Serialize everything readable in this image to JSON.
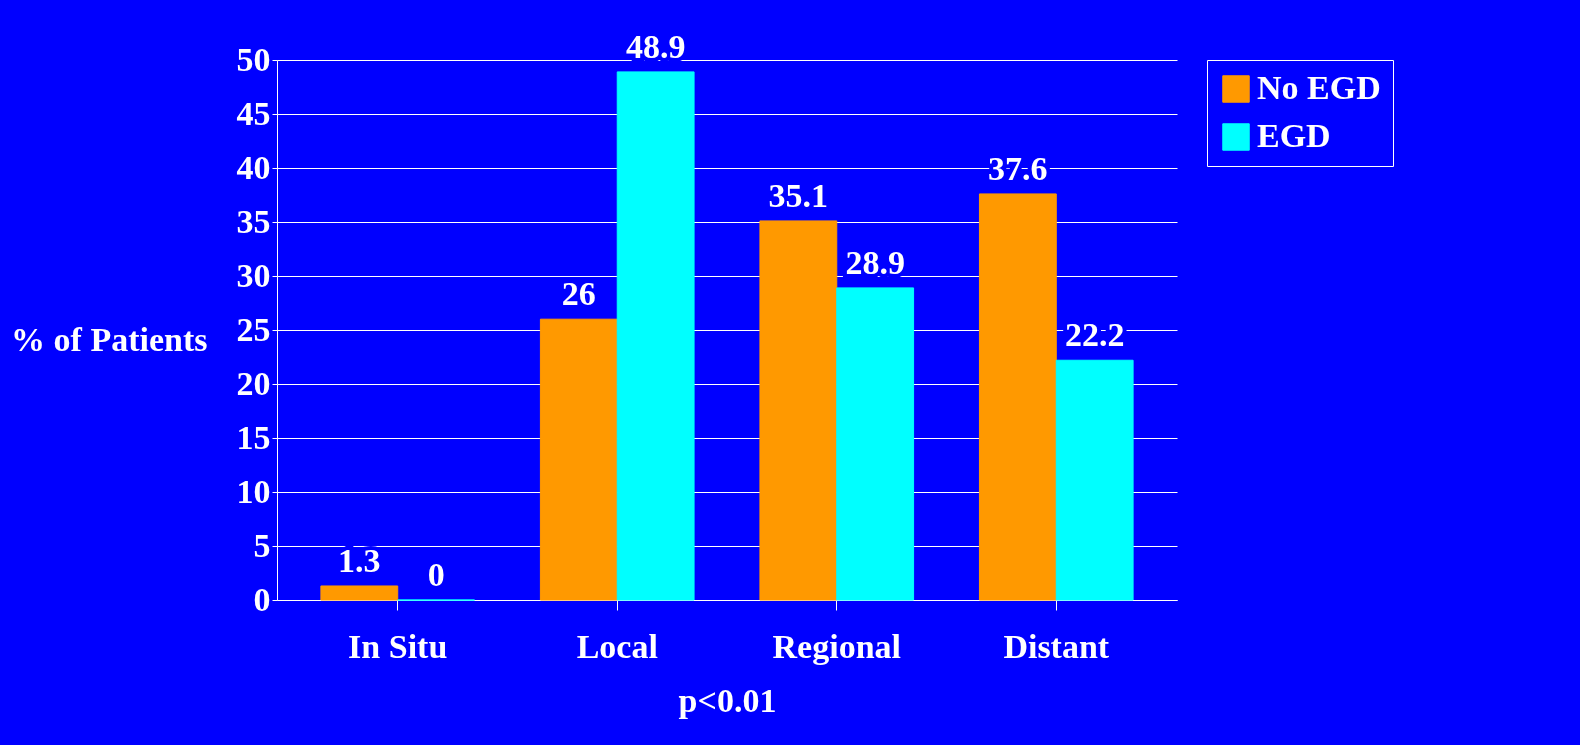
{
  "chart_data": {
    "type": "bar",
    "xlabel": "p<0.01",
    "ylabel": "% of Patients",
    "categories": [
      "In Situ",
      "Local",
      "Regional",
      "Distant"
    ],
    "series": [
      {
        "name": "No EGD",
        "color": "#ff9900",
        "values": [
          1.3,
          26,
          35.1,
          37.6
        ]
      },
      {
        "name": "EGD",
        "color": "#00ffff",
        "values": [
          0,
          48.9,
          28.9,
          22.2
        ]
      }
    ],
    "ylim": [
      0,
      50
    ],
    "yticks": [
      0,
      5,
      10,
      15,
      20,
      25,
      30,
      35,
      40,
      45,
      50
    ],
    "grid": "y",
    "legend": "right",
    "data_labels": true
  }
}
